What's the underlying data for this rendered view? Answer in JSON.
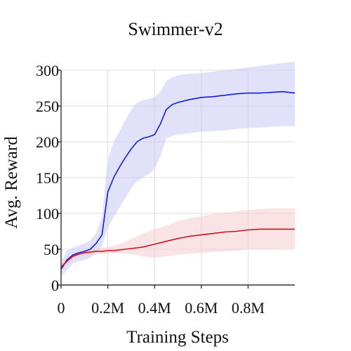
{
  "chart_data": {
    "type": "line",
    "title": "Swimmer-v2",
    "xlabel": "Training Steps",
    "ylabel": "Avg. Reward",
    "xlim": [
      0,
      1000000
    ],
    "ylim": [
      0,
      300
    ],
    "x_ticks": [
      {
        "value": 0,
        "label": "0"
      },
      {
        "value": 200000,
        "label": "0.2M"
      },
      {
        "value": 400000,
        "label": "0.4M"
      },
      {
        "value": 600000,
        "label": "0.6M"
      },
      {
        "value": 800000,
        "label": "0.8M"
      }
    ],
    "y_ticks": [
      {
        "value": 0,
        "label": "0"
      },
      {
        "value": 50,
        "label": "50"
      },
      {
        "value": 100,
        "label": "100"
      },
      {
        "value": 150,
        "label": "150"
      },
      {
        "value": 200,
        "label": "200"
      },
      {
        "value": 250,
        "label": "250"
      },
      {
        "value": 300,
        "label": "300"
      }
    ],
    "grid": true,
    "legend": "none",
    "series": [
      {
        "color": "#1020d0",
        "band_color": "#c9c8f5",
        "x": [
          0,
          25000,
          50000,
          75000,
          100000,
          125000,
          150000,
          175000,
          200000,
          225000,
          250000,
          275000,
          300000,
          325000,
          350000,
          375000,
          400000,
          425000,
          450000,
          475000,
          500000,
          550000,
          600000,
          650000,
          700000,
          750000,
          800000,
          850000,
          900000,
          950000,
          1000000
        ],
        "values": [
          22,
          35,
          42,
          45,
          47,
          50,
          58,
          70,
          130,
          150,
          165,
          178,
          190,
          200,
          205,
          207,
          210,
          225,
          245,
          252,
          255,
          259,
          262,
          263,
          265,
          267,
          268,
          268,
          269,
          270,
          268
        ],
        "lower": [
          12,
          20,
          30,
          33,
          35,
          38,
          45,
          55,
          80,
          95,
          108,
          122,
          135,
          145,
          150,
          155,
          162,
          180,
          205,
          208,
          210,
          212,
          214,
          215,
          216,
          218,
          219,
          220,
          221,
          222,
          222
        ],
        "upper": [
          32,
          48,
          52,
          55,
          58,
          62,
          72,
          95,
          175,
          200,
          215,
          230,
          245,
          255,
          258,
          260,
          262,
          270,
          285,
          290,
          293,
          295,
          296,
          298,
          300,
          302,
          304,
          306,
          308,
          310,
          312
        ]
      },
      {
        "color": "#cc1020",
        "band_color": "#f6cccf",
        "x": [
          0,
          25000,
          50000,
          75000,
          100000,
          125000,
          150000,
          175000,
          200000,
          225000,
          250000,
          275000,
          300000,
          325000,
          350000,
          375000,
          400000,
          425000,
          450000,
          475000,
          500000,
          550000,
          600000,
          650000,
          700000,
          750000,
          800000,
          850000,
          900000,
          950000,
          1000000
        ],
        "values": [
          25,
          33,
          40,
          43,
          45,
          46,
          47,
          47,
          48,
          48,
          49,
          50,
          51,
          52,
          53,
          55,
          57,
          59,
          61,
          63,
          65,
          68,
          70,
          72,
          74,
          75,
          77,
          78,
          78,
          78,
          78
        ],
        "lower": [
          20,
          28,
          36,
          39,
          41,
          42,
          43,
          43,
          44,
          44,
          44,
          44,
          43,
          42,
          40,
          39,
          38,
          39,
          40,
          41,
          42,
          44,
          45,
          46,
          47,
          48,
          50,
          50,
          50,
          51,
          51
        ],
        "upper": [
          30,
          38,
          44,
          47,
          49,
          50,
          51,
          52,
          53,
          55,
          57,
          60,
          64,
          68,
          72,
          75,
          78,
          80,
          83,
          86,
          89,
          93,
          96,
          99,
          101,
          103,
          105,
          106,
          107,
          107,
          107
        ]
      }
    ]
  }
}
